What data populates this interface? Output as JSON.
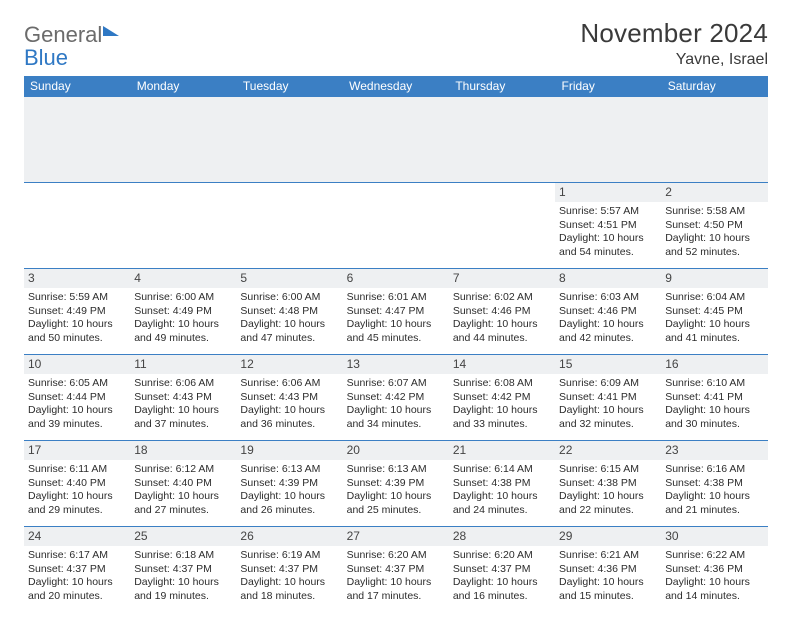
{
  "logo": {
    "word1": "General",
    "word2": "Blue"
  },
  "header": {
    "month_title": "November 2024",
    "location": "Yavne, Israel"
  },
  "colors": {
    "header_bg": "#3b7fc4",
    "header_text": "#ffffff",
    "daynum_bg": "#eef0f2",
    "cell_border": "#3b7fc4",
    "body_text": "#2c2c2c",
    "logo_gray": "#6b6b6b",
    "logo_blue": "#2f78c4"
  },
  "days_of_week": [
    "Sunday",
    "Monday",
    "Tuesday",
    "Wednesday",
    "Thursday",
    "Friday",
    "Saturday"
  ],
  "weeks": [
    [
      {
        "blank": true
      },
      {
        "blank": true
      },
      {
        "blank": true
      },
      {
        "blank": true
      },
      {
        "blank": true
      },
      {
        "n": "1",
        "sunrise": "Sunrise: 5:57 AM",
        "sunset": "Sunset: 4:51 PM",
        "d1": "Daylight: 10 hours",
        "d2": "and 54 minutes."
      },
      {
        "n": "2",
        "sunrise": "Sunrise: 5:58 AM",
        "sunset": "Sunset: 4:50 PM",
        "d1": "Daylight: 10 hours",
        "d2": "and 52 minutes."
      }
    ],
    [
      {
        "n": "3",
        "sunrise": "Sunrise: 5:59 AM",
        "sunset": "Sunset: 4:49 PM",
        "d1": "Daylight: 10 hours",
        "d2": "and 50 minutes."
      },
      {
        "n": "4",
        "sunrise": "Sunrise: 6:00 AM",
        "sunset": "Sunset: 4:49 PM",
        "d1": "Daylight: 10 hours",
        "d2": "and 49 minutes."
      },
      {
        "n": "5",
        "sunrise": "Sunrise: 6:00 AM",
        "sunset": "Sunset: 4:48 PM",
        "d1": "Daylight: 10 hours",
        "d2": "and 47 minutes."
      },
      {
        "n": "6",
        "sunrise": "Sunrise: 6:01 AM",
        "sunset": "Sunset: 4:47 PM",
        "d1": "Daylight: 10 hours",
        "d2": "and 45 minutes."
      },
      {
        "n": "7",
        "sunrise": "Sunrise: 6:02 AM",
        "sunset": "Sunset: 4:46 PM",
        "d1": "Daylight: 10 hours",
        "d2": "and 44 minutes."
      },
      {
        "n": "8",
        "sunrise": "Sunrise: 6:03 AM",
        "sunset": "Sunset: 4:46 PM",
        "d1": "Daylight: 10 hours",
        "d2": "and 42 minutes."
      },
      {
        "n": "9",
        "sunrise": "Sunrise: 6:04 AM",
        "sunset": "Sunset: 4:45 PM",
        "d1": "Daylight: 10 hours",
        "d2": "and 41 minutes."
      }
    ],
    [
      {
        "n": "10",
        "sunrise": "Sunrise: 6:05 AM",
        "sunset": "Sunset: 4:44 PM",
        "d1": "Daylight: 10 hours",
        "d2": "and 39 minutes."
      },
      {
        "n": "11",
        "sunrise": "Sunrise: 6:06 AM",
        "sunset": "Sunset: 4:43 PM",
        "d1": "Daylight: 10 hours",
        "d2": "and 37 minutes."
      },
      {
        "n": "12",
        "sunrise": "Sunrise: 6:06 AM",
        "sunset": "Sunset: 4:43 PM",
        "d1": "Daylight: 10 hours",
        "d2": "and 36 minutes."
      },
      {
        "n": "13",
        "sunrise": "Sunrise: 6:07 AM",
        "sunset": "Sunset: 4:42 PM",
        "d1": "Daylight: 10 hours",
        "d2": "and 34 minutes."
      },
      {
        "n": "14",
        "sunrise": "Sunrise: 6:08 AM",
        "sunset": "Sunset: 4:42 PM",
        "d1": "Daylight: 10 hours",
        "d2": "and 33 minutes."
      },
      {
        "n": "15",
        "sunrise": "Sunrise: 6:09 AM",
        "sunset": "Sunset: 4:41 PM",
        "d1": "Daylight: 10 hours",
        "d2": "and 32 minutes."
      },
      {
        "n": "16",
        "sunrise": "Sunrise: 6:10 AM",
        "sunset": "Sunset: 4:41 PM",
        "d1": "Daylight: 10 hours",
        "d2": "and 30 minutes."
      }
    ],
    [
      {
        "n": "17",
        "sunrise": "Sunrise: 6:11 AM",
        "sunset": "Sunset: 4:40 PM",
        "d1": "Daylight: 10 hours",
        "d2": "and 29 minutes."
      },
      {
        "n": "18",
        "sunrise": "Sunrise: 6:12 AM",
        "sunset": "Sunset: 4:40 PM",
        "d1": "Daylight: 10 hours",
        "d2": "and 27 minutes."
      },
      {
        "n": "19",
        "sunrise": "Sunrise: 6:13 AM",
        "sunset": "Sunset: 4:39 PM",
        "d1": "Daylight: 10 hours",
        "d2": "and 26 minutes."
      },
      {
        "n": "20",
        "sunrise": "Sunrise: 6:13 AM",
        "sunset": "Sunset: 4:39 PM",
        "d1": "Daylight: 10 hours",
        "d2": "and 25 minutes."
      },
      {
        "n": "21",
        "sunrise": "Sunrise: 6:14 AM",
        "sunset": "Sunset: 4:38 PM",
        "d1": "Daylight: 10 hours",
        "d2": "and 24 minutes."
      },
      {
        "n": "22",
        "sunrise": "Sunrise: 6:15 AM",
        "sunset": "Sunset: 4:38 PM",
        "d1": "Daylight: 10 hours",
        "d2": "and 22 minutes."
      },
      {
        "n": "23",
        "sunrise": "Sunrise: 6:16 AM",
        "sunset": "Sunset: 4:38 PM",
        "d1": "Daylight: 10 hours",
        "d2": "and 21 minutes."
      }
    ],
    [
      {
        "n": "24",
        "sunrise": "Sunrise: 6:17 AM",
        "sunset": "Sunset: 4:37 PM",
        "d1": "Daylight: 10 hours",
        "d2": "and 20 minutes."
      },
      {
        "n": "25",
        "sunrise": "Sunrise: 6:18 AM",
        "sunset": "Sunset: 4:37 PM",
        "d1": "Daylight: 10 hours",
        "d2": "and 19 minutes."
      },
      {
        "n": "26",
        "sunrise": "Sunrise: 6:19 AM",
        "sunset": "Sunset: 4:37 PM",
        "d1": "Daylight: 10 hours",
        "d2": "and 18 minutes."
      },
      {
        "n": "27",
        "sunrise": "Sunrise: 6:20 AM",
        "sunset": "Sunset: 4:37 PM",
        "d1": "Daylight: 10 hours",
        "d2": "and 17 minutes."
      },
      {
        "n": "28",
        "sunrise": "Sunrise: 6:20 AM",
        "sunset": "Sunset: 4:37 PM",
        "d1": "Daylight: 10 hours",
        "d2": "and 16 minutes."
      },
      {
        "n": "29",
        "sunrise": "Sunrise: 6:21 AM",
        "sunset": "Sunset: 4:36 PM",
        "d1": "Daylight: 10 hours",
        "d2": "and 15 minutes."
      },
      {
        "n": "30",
        "sunrise": "Sunrise: 6:22 AM",
        "sunset": "Sunset: 4:36 PM",
        "d1": "Daylight: 10 hours",
        "d2": "and 14 minutes."
      }
    ]
  ]
}
